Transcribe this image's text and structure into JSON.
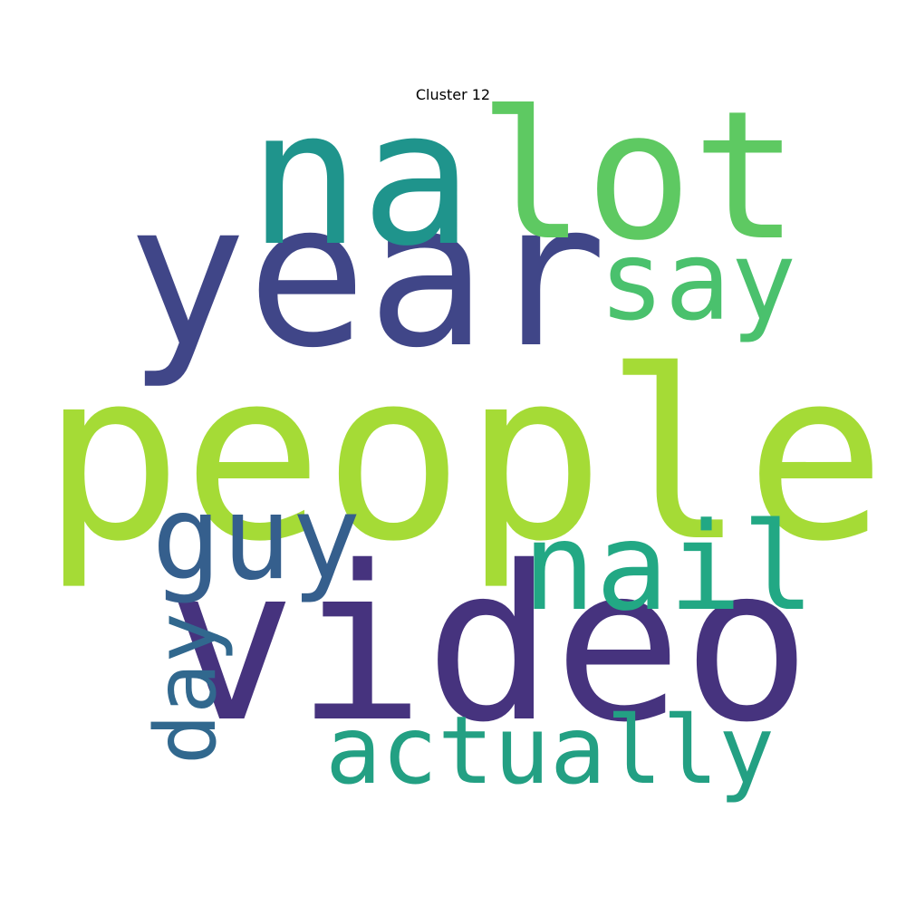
{
  "chart_data": {
    "type": "wordcloud",
    "title": "Cluster 12",
    "words": [
      {
        "text": "people",
        "weight": 1.0,
        "color": "#a5db36"
      },
      {
        "text": "video",
        "weight": 0.92,
        "color": "#46337e"
      },
      {
        "text": "year",
        "weight": 0.86,
        "color": "#404688"
      },
      {
        "text": "na",
        "weight": 0.8,
        "color": "#1f948c"
      },
      {
        "text": "lot",
        "weight": 0.76,
        "color": "#5ec962"
      },
      {
        "text": "nail",
        "weight": 0.52,
        "color": "#22a884"
      },
      {
        "text": "guy",
        "weight": 0.5,
        "color": "#355f8d"
      },
      {
        "text": "say",
        "weight": 0.47,
        "color": "#4ac16d"
      },
      {
        "text": "actually",
        "weight": 0.4,
        "color": "#23a083"
      },
      {
        "text": "day",
        "weight": 0.36,
        "color": "#31688e"
      }
    ]
  }
}
